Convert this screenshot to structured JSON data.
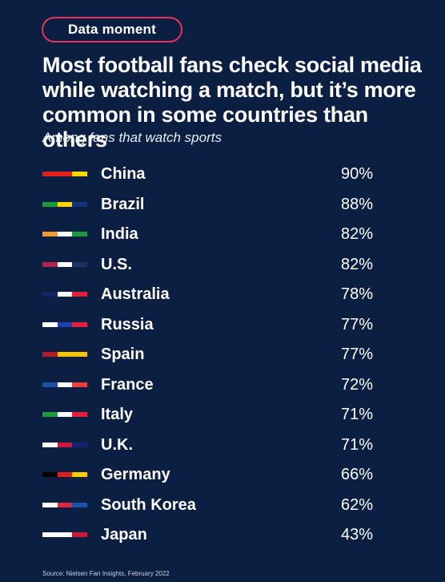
{
  "badge": "Data moment",
  "title": "Most football fans check social media while watching a match, but it’s more common in some countries than others",
  "subtitle": "Among fans that watch sports",
  "source": "Source: Nielsen Fan Insights, February 2022",
  "chart_data": {
    "type": "table",
    "title": "Most football fans check social media while watching a match, but it’s more common in some countries than others",
    "subtitle": "Among fans that watch sports",
    "categories": [
      "China",
      "Brazil",
      "India",
      "U.S.",
      "Australia",
      "Russia",
      "Spain",
      "France",
      "Italy",
      "U.K.",
      "Germany",
      "South Korea",
      "Japan"
    ],
    "values": [
      90,
      88,
      82,
      82,
      78,
      77,
      77,
      72,
      71,
      71,
      66,
      62,
      43
    ],
    "value_labels": [
      "90%",
      "88%",
      "82%",
      "82%",
      "78%",
      "77%",
      "77%",
      "72%",
      "71%",
      "71%",
      "66%",
      "62%",
      "43%"
    ],
    "flag_colors": [
      [
        "#e0201b",
        "#e0201b",
        "#ffd500"
      ],
      [
        "#1a9a3c",
        "#ffd500",
        "#17347a"
      ],
      [
        "#f39a2e",
        "#ffffff",
        "#1a9a3c"
      ],
      [
        "#b3234a",
        "#ffffff",
        "#1d3163"
      ],
      [
        "#12246a",
        "#ffffff",
        "#e3203a"
      ],
      [
        "#ffffff",
        "#1e3fb0",
        "#e3203a"
      ],
      [
        "#b8192a",
        "#ffc400",
        "#ffc400"
      ],
      [
        "#1e4fa8",
        "#ffffff",
        "#e8403e"
      ],
      [
        "#1a9a3c",
        "#ffffff",
        "#e3203a"
      ],
      [
        "#ffffff",
        "#c8193c",
        "#12246a"
      ],
      [
        "#000000",
        "#e0201b",
        "#ffcc00"
      ],
      [
        "#ffffff",
        "#d8283e",
        "#1e4fa8"
      ],
      [
        "#ffffff",
        "#ffffff",
        "#c8193c"
      ]
    ]
  }
}
